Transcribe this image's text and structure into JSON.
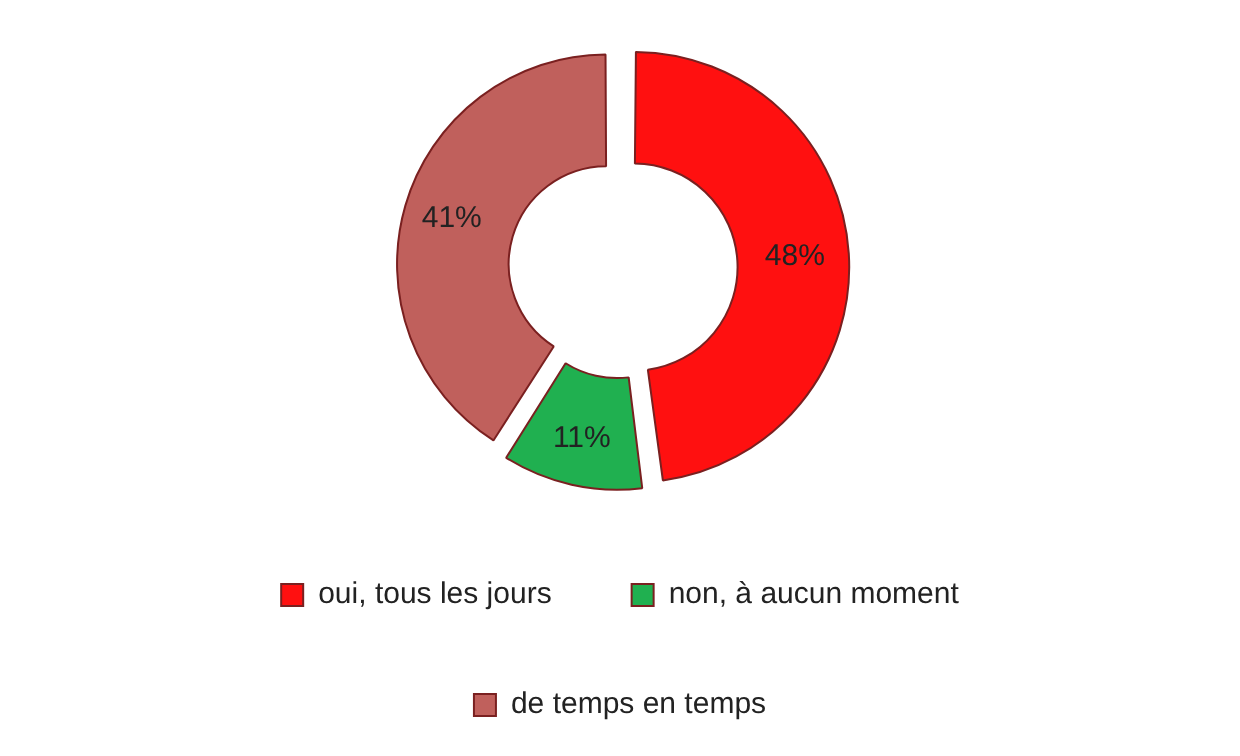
{
  "chart_data": {
    "type": "donut",
    "categories": [
      "oui, tous les jours",
      "non, à aucun moment",
      "de temps en temps"
    ],
    "values": [
      48,
      11,
      41
    ],
    "colors": [
      "#ff1010",
      "#20b050",
      "#c0605c"
    ],
    "value_labels": [
      "48%",
      "11%",
      "41%"
    ],
    "legend": "bottom"
  }
}
